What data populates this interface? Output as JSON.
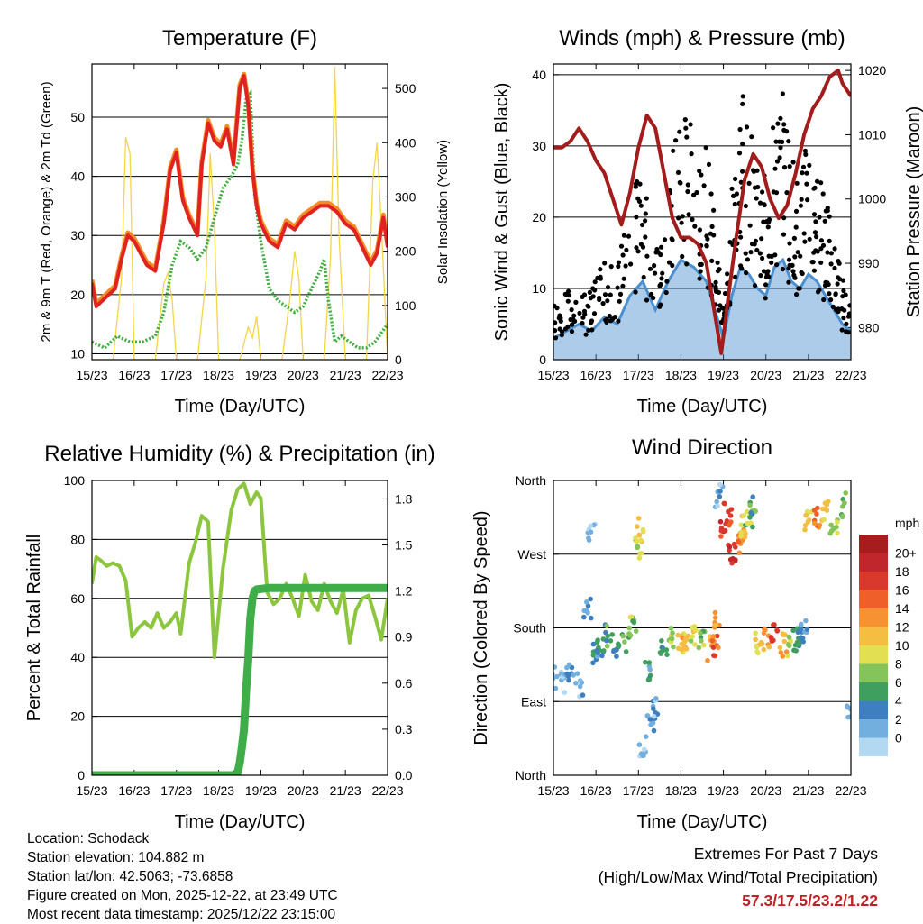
{
  "chart_data": [
    {
      "id": "temperature",
      "type": "line",
      "title": "Temperature (F)",
      "xlabel": "Time (Day/UTC)",
      "ylabel": "2m & 9m T (Red, Orange) & 2m Td (Green)",
      "ylabel_right": "Solar Insolation (Yellow)",
      "x_ticks": [
        "15/23",
        "16/23",
        "17/23",
        "18/23",
        "19/23",
        "20/23",
        "21/23",
        "22/23"
      ],
      "xlim": [
        0,
        7
      ],
      "ylim": [
        9,
        59
      ],
      "y_ticks": [
        10,
        20,
        30,
        40,
        50
      ],
      "ylim_right": [
        0,
        545
      ],
      "y_ticks_right": [
        0,
        100,
        200,
        300,
        400,
        500
      ],
      "colors": {
        "t2m": "#e0231f",
        "t9m": "#f28c28",
        "td": "#3fae3f",
        "solar": "#f5d547"
      },
      "series": [
        {
          "name": "2m T",
          "axis": "left",
          "x": [
            0,
            0.1,
            0.25,
            0.4,
            0.55,
            0.7,
            0.85,
            1.0,
            1.15,
            1.3,
            1.5,
            1.7,
            1.85,
            2.0,
            2.15,
            2.3,
            2.5,
            2.6,
            2.75,
            2.9,
            3.05,
            3.2,
            3.35,
            3.5,
            3.6,
            3.7,
            3.8,
            3.9,
            4.0,
            4.2,
            4.4,
            4.6,
            4.8,
            5.0,
            5.2,
            5.4,
            5.6,
            5.8,
            6.0,
            6.2,
            6.4,
            6.6,
            6.75,
            6.9,
            7.0
          ],
          "values": [
            22,
            18,
            19,
            20,
            21,
            26,
            30,
            29,
            27,
            25,
            24,
            32,
            41,
            44,
            36,
            33,
            30,
            42,
            49,
            46,
            45,
            48,
            42,
            55,
            57,
            52,
            41,
            35,
            32,
            29,
            28,
            32,
            31,
            33,
            34,
            35,
            35,
            34,
            32,
            31,
            28,
            25,
            27,
            33,
            28
          ]
        },
        {
          "name": "9m T",
          "axis": "left",
          "x": [
            0,
            0.1,
            0.25,
            0.4,
            0.55,
            0.7,
            0.85,
            1.0,
            1.15,
            1.3,
            1.5,
            1.7,
            1.85,
            2.0,
            2.15,
            2.3,
            2.5,
            2.6,
            2.75,
            2.9,
            3.05,
            3.2,
            3.35,
            3.5,
            3.6,
            3.7,
            3.8,
            3.9,
            4.0,
            4.2,
            4.4,
            4.6,
            4.8,
            5.0,
            5.2,
            5.4,
            5.6,
            5.8,
            6.0,
            6.2,
            6.4,
            6.6,
            6.75,
            6.9,
            7.0
          ],
          "values": [
            22.5,
            18.5,
            19.5,
            20.5,
            21.5,
            26.5,
            30.5,
            29.5,
            27.5,
            25.5,
            24.5,
            32.5,
            41.5,
            44.5,
            36.5,
            33.5,
            30.5,
            42.5,
            49.5,
            46.5,
            45.5,
            48.5,
            42.5,
            55.5,
            57.3,
            52.5,
            41.5,
            35.5,
            32.5,
            29.5,
            28.5,
            32.5,
            31.5,
            33.5,
            34.5,
            35.5,
            35.5,
            34.5,
            32.5,
            31.5,
            28.5,
            25.5,
            27.5,
            33.5,
            28.5
          ]
        },
        {
          "name": "2m Td",
          "axis": "left",
          "x": [
            0,
            0.3,
            0.6,
            0.9,
            1.2,
            1.5,
            1.7,
            1.9,
            2.1,
            2.3,
            2.5,
            2.7,
            2.9,
            3.1,
            3.3,
            3.45,
            3.55,
            3.65,
            3.75,
            3.85,
            4.0,
            4.2,
            4.4,
            4.6,
            4.8,
            5.0,
            5.2,
            5.4,
            5.5,
            5.6,
            5.75,
            5.9,
            6.1,
            6.3,
            6.5,
            6.7,
            6.9,
            7.0
          ],
          "values": [
            12,
            11,
            13,
            12,
            12,
            13,
            17,
            25,
            29,
            28,
            26,
            28,
            33,
            38,
            40,
            42,
            46,
            53,
            54,
            37,
            29,
            21,
            19,
            18,
            17,
            18,
            21,
            24,
            26,
            19,
            12,
            13,
            12,
            11,
            11,
            12,
            14,
            15
          ]
        },
        {
          "name": "Solar",
          "axis": "right",
          "x": [
            0,
            0.5,
            0.7,
            0.8,
            0.9,
            1.0,
            1.5,
            1.7,
            1.8,
            1.9,
            2.0,
            2.5,
            2.7,
            2.8,
            2.9,
            3.0,
            3.5,
            3.7,
            3.8,
            3.9,
            4.0,
            4.5,
            4.7,
            4.8,
            4.9,
            5.0,
            5.5,
            5.65,
            5.75,
            5.85,
            6.0,
            6.5,
            6.65,
            6.75,
            6.85,
            7.0
          ],
          "values": [
            0,
            0,
            150,
            410,
            380,
            0,
            0,
            140,
            160,
            110,
            0,
            0,
            150,
            380,
            240,
            0,
            0,
            60,
            40,
            80,
            0,
            0,
            120,
            200,
            150,
            0,
            0,
            190,
            540,
            230,
            0,
            0,
            330,
            400,
            250,
            0
          ]
        }
      ]
    },
    {
      "id": "winds",
      "type": "line",
      "title": "Winds (mph) & Pressure (mb)",
      "xlabel": "Time (Day/UTC)",
      "ylabel": "Sonic Wind & Gust (Blue, Black)",
      "ylabel_right": "Station Pressure (Maroon)",
      "x_ticks": [
        "15/23",
        "16/23",
        "17/23",
        "18/23",
        "19/23",
        "20/23",
        "21/23",
        "22/23"
      ],
      "xlim": [
        0,
        7
      ],
      "ylim": [
        0,
        41.5
      ],
      "y_ticks": [
        0,
        10,
        20,
        30,
        40
      ],
      "ylim_right": [
        975,
        1021
      ],
      "y_ticks_right": [
        980,
        990,
        1000,
        1010,
        1020
      ],
      "colors": {
        "wind": "#4a8fcf",
        "gust": "#000000",
        "pressure": "#a31c1c"
      },
      "series": [
        {
          "name": "Sonic Wind",
          "axis": "left",
          "x": [
            0,
            0.3,
            0.6,
            0.9,
            1.2,
            1.5,
            1.8,
            2.1,
            2.4,
            2.7,
            3.0,
            3.3,
            3.6,
            3.8,
            4.0,
            4.2,
            4.4,
            4.6,
            4.8,
            5.0,
            5.2,
            5.4,
            5.6,
            5.8,
            6.0,
            6.2,
            6.4,
            6.6,
            6.8,
            7.0
          ],
          "values": [
            3,
            4,
            5,
            4,
            6,
            5,
            9,
            11,
            7,
            11,
            14,
            13,
            11,
            7,
            3,
            9,
            13,
            12,
            10,
            9,
            13,
            14,
            11,
            10,
            12,
            11,
            9,
            7,
            5,
            4
          ]
        },
        {
          "name": "Gust",
          "axis": "left",
          "x": [
            0,
            0.3,
            0.6,
            0.9,
            1.2,
            1.5,
            1.8,
            2.1,
            2.4,
            2.7,
            3.0,
            3.3,
            3.6,
            3.8,
            4.0,
            4.2,
            4.4,
            4.6,
            4.8,
            5.0,
            5.2,
            5.4,
            5.6,
            5.8,
            6.0,
            6.2,
            6.4,
            6.6,
            6.8,
            7.0
          ],
          "values": [
            6,
            7,
            8,
            7,
            12,
            10,
            17,
            20,
            13,
            21,
            25,
            26,
            24,
            14,
            6,
            18,
            28,
            26,
            21,
            19,
            26,
            28,
            22,
            19,
            24,
            21,
            17,
            13,
            9,
            6
          ]
        },
        {
          "name": "Station Pressure",
          "axis": "right",
          "x": [
            0,
            0.2,
            0.4,
            0.6,
            0.8,
            1.0,
            1.2,
            1.4,
            1.6,
            1.8,
            2.0,
            2.2,
            2.4,
            2.6,
            2.8,
            3.0,
            3.2,
            3.4,
            3.6,
            3.8,
            3.95,
            4.1,
            4.3,
            4.5,
            4.7,
            4.9,
            5.1,
            5.3,
            5.5,
            5.7,
            5.9,
            6.1,
            6.3,
            6.5,
            6.7,
            6.8,
            6.9,
            7.0
          ],
          "values": [
            1008,
            1008,
            1009,
            1011,
            1009,
            1006,
            1004,
            1000,
            996,
            1001,
            1008,
            1013,
            1011,
            1004,
            997,
            994,
            994,
            993,
            990,
            982,
            976,
            984,
            994,
            1003,
            1007,
            1005,
            1000,
            997,
            999,
            1004,
            1010,
            1014,
            1016,
            1019,
            1020,
            1018,
            1017,
            1016
          ]
        }
      ]
    },
    {
      "id": "humidity",
      "type": "line",
      "title": "Relative Humidity (%) & Precipitation (in)",
      "xlabel": "Time (Day/UTC)",
      "ylabel": "Percent & Total Rainfall",
      "x_ticks": [
        "15/23",
        "16/23",
        "17/23",
        "18/23",
        "19/23",
        "20/23",
        "21/23",
        "22/23"
      ],
      "xlim": [
        0,
        7
      ],
      "ylim": [
        0,
        100
      ],
      "y_ticks": [
        0,
        20,
        40,
        60,
        80,
        100
      ],
      "ylim_right": [
        0,
        1.92
      ],
      "y_ticks_right": [
        "0.0",
        "0.3",
        "0.6",
        "0.9",
        "1.2",
        "1.5",
        "1.8"
      ],
      "colors": {
        "rh": "#8cc63f",
        "precip": "#3fae48"
      },
      "series": [
        {
          "name": "Relative Humidity",
          "axis": "left",
          "x": [
            0,
            0.1,
            0.2,
            0.35,
            0.5,
            0.65,
            0.8,
            0.95,
            1.1,
            1.25,
            1.4,
            1.55,
            1.7,
            1.85,
            2.0,
            2.1,
            2.2,
            2.3,
            2.45,
            2.6,
            2.75,
            2.9,
            3.1,
            3.3,
            3.45,
            3.6,
            3.75,
            3.9,
            4.0,
            4.15,
            4.3,
            4.45,
            4.6,
            4.75,
            4.9,
            5.05,
            5.2,
            5.35,
            5.5,
            5.65,
            5.8,
            5.95,
            6.1,
            6.25,
            6.4,
            6.55,
            6.7,
            6.85,
            7.0
          ],
          "values": [
            65,
            74,
            73,
            71,
            72,
            71,
            66,
            47,
            50,
            52,
            50,
            55,
            50,
            52,
            55,
            48,
            60,
            72,
            79,
            88,
            86,
            40,
            70,
            90,
            97,
            99,
            92,
            96,
            94,
            62,
            58,
            60,
            65,
            60,
            54,
            68,
            59,
            56,
            65,
            59,
            55,
            63,
            45,
            56,
            60,
            61,
            54,
            46,
            60
          ]
        },
        {
          "name": "Total Rainfall",
          "axis": "right",
          "x": [
            0,
            1,
            2,
            3,
            3.35,
            3.45,
            3.5,
            3.55,
            3.6,
            3.65,
            3.7,
            3.75,
            3.8,
            3.85,
            3.9,
            4.2,
            5,
            6,
            7
          ],
          "values": [
            0,
            0,
            0,
            0,
            0,
            0.02,
            0.08,
            0.18,
            0.3,
            0.55,
            0.75,
            1.02,
            1.15,
            1.2,
            1.21,
            1.22,
            1.22,
            1.22,
            1.22
          ]
        }
      ]
    },
    {
      "id": "wind_direction",
      "type": "scatter",
      "title": "Wind Direction",
      "xlabel": "Time (Day/UTC)",
      "ylabel": "Direction (Colored By Speed)",
      "x_ticks": [
        "15/23",
        "16/23",
        "17/23",
        "18/23",
        "19/23",
        "20/23",
        "21/23",
        "22/23"
      ],
      "xlim": [
        0,
        7
      ],
      "ylim": [
        0,
        360
      ],
      "y_ticks": [
        {
          "value": 0,
          "label": "North"
        },
        {
          "value": 90,
          "label": "East"
        },
        {
          "value": 180,
          "label": "South"
        },
        {
          "value": 270,
          "label": "West"
        },
        {
          "value": 360,
          "label": "North"
        }
      ],
      "legend": {
        "title": "mph",
        "labels": [
          "20+",
          "18",
          "16",
          "14",
          "12",
          "10",
          "8",
          "6",
          "4",
          "2",
          "0"
        ],
        "colors": [
          "#a51d1d",
          "#c0272d",
          "#d9382c",
          "#ee5f2a",
          "#f79232",
          "#f5be42",
          "#e2df52",
          "#84c45a",
          "#3f9f5e",
          "#3d7fbf",
          "#72aede",
          "#b3d9f2"
        ]
      },
      "series": [
        {
          "name": "direction",
          "x": [
            0,
            0.2,
            0.4,
            0.6,
            0.8,
            0.9,
            1.0,
            1.1,
            1.3,
            1.5,
            1.7,
            1.9,
            2.0,
            2.05,
            2.1,
            2.2,
            2.3,
            2.4,
            2.6,
            2.8,
            3.0,
            3.1,
            3.3,
            3.5,
            3.7,
            3.8,
            3.85,
            3.9,
            4.0,
            4.1,
            4.2,
            4.3,
            4.4,
            4.5,
            4.6,
            4.7,
            4.8,
            5.0,
            5.2,
            5.4,
            5.6,
            5.7,
            5.8,
            5.9,
            6.0,
            6.2,
            6.4,
            6.6,
            6.8,
            7.0
          ],
          "values": [
            120,
            115,
            125,
            110,
            205,
            300,
            150,
            160,
            170,
            160,
            165,
            185,
            280,
            300,
            35,
            130,
            60,
            85,
            150,
            165,
            160,
            158,
            170,
            165,
            155,
            160,
            195,
            340,
            300,
            320,
            270,
            285,
            290,
            305,
            310,
            330,
            160,
            165,
            170,
            160,
            155,
            165,
            170,
            175,
            310,
            315,
            320,
            310,
            330,
            70
          ],
          "speeds": [
            3,
            2,
            4,
            3,
            3,
            2,
            5,
            6,
            7,
            6,
            8,
            9,
            10,
            12,
            2,
            5,
            4,
            3,
            6,
            10,
            12,
            14,
            11,
            9,
            15,
            17,
            14,
            3,
            19,
            18,
            20,
            17,
            15,
            12,
            9,
            7,
            12,
            15,
            18,
            14,
            10,
            7,
            6,
            4,
            12,
            16,
            13,
            10,
            8,
            2
          ]
        }
      ]
    }
  ],
  "footer": {
    "location": "Location: Schodack",
    "elevation": "Station elevation: 104.882 m",
    "latlon": "Station lat/lon: 42.5063; -73.6858",
    "created": "Figure created on Mon, 2025-12-22, at 23:49 UTC",
    "recent": "Most recent data timestamp: 2025/12/22 23:15:00"
  },
  "extremes": {
    "title": "Extremes For Past 7 Days",
    "subtitle": "(High/Low/Max Wind/Total Precipitation)",
    "values": "57.3/17.5/23.2/1.22"
  }
}
